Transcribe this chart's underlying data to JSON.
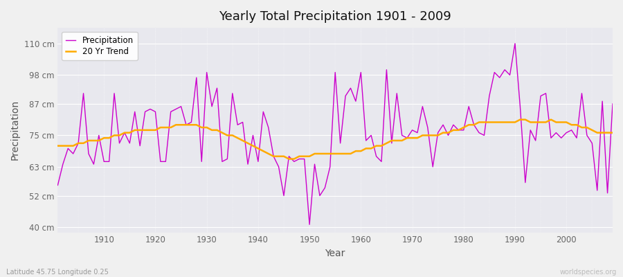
{
  "title": "Yearly Total Precipitation 1901 - 2009",
  "xlabel": "Year",
  "ylabel": "Precipitation",
  "subtitle": "Latitude 45.75 Longitude 0.25",
  "watermark": "worldspecies.org",
  "bg_color": "#f0f0f0",
  "plot_bg_color": "#e8e8ee",
  "precip_color": "#cc00cc",
  "trend_color": "#ffaa00",
  "precip_label": "Precipitation",
  "trend_label": "20 Yr Trend",
  "ylim": [
    38,
    116
  ],
  "yticks": [
    40,
    52,
    63,
    75,
    87,
    98,
    110
  ],
  "ytick_labels": [
    "40 cm",
    "52 cm",
    "63 cm",
    "75 cm",
    "87 cm",
    "98 cm",
    "110 cm"
  ],
  "years": [
    1901,
    1902,
    1903,
    1904,
    1905,
    1906,
    1907,
    1908,
    1909,
    1910,
    1911,
    1912,
    1913,
    1914,
    1915,
    1916,
    1917,
    1918,
    1919,
    1920,
    1921,
    1922,
    1923,
    1924,
    1925,
    1926,
    1927,
    1928,
    1929,
    1930,
    1931,
    1932,
    1933,
    1934,
    1935,
    1936,
    1937,
    1938,
    1939,
    1940,
    1941,
    1942,
    1943,
    1944,
    1945,
    1946,
    1947,
    1948,
    1949,
    1950,
    1951,
    1952,
    1953,
    1954,
    1955,
    1956,
    1957,
    1958,
    1959,
    1960,
    1961,
    1962,
    1963,
    1964,
    1965,
    1966,
    1967,
    1968,
    1969,
    1970,
    1971,
    1972,
    1973,
    1974,
    1975,
    1976,
    1977,
    1978,
    1979,
    1980,
    1981,
    1982,
    1983,
    1984,
    1985,
    1986,
    1987,
    1988,
    1989,
    1990,
    1991,
    1992,
    1993,
    1994,
    1995,
    1996,
    1997,
    1998,
    1999,
    2000,
    2001,
    2002,
    2003,
    2004,
    2005,
    2006,
    2007,
    2008,
    2009
  ],
  "precip": [
    56,
    64,
    70,
    68,
    72,
    91,
    68,
    64,
    75,
    65,
    65,
    91,
    72,
    76,
    72,
    84,
    71,
    84,
    85,
    84,
    65,
    65,
    84,
    85,
    86,
    79,
    80,
    97,
    65,
    99,
    86,
    93,
    65,
    66,
    91,
    79,
    80,
    64,
    75,
    65,
    84,
    78,
    67,
    63,
    52,
    67,
    65,
    66,
    66,
    41,
    64,
    52,
    55,
    63,
    99,
    72,
    90,
    93,
    88,
    99,
    73,
    75,
    67,
    65,
    100,
    72,
    91,
    75,
    74,
    77,
    76,
    86,
    78,
    63,
    76,
    79,
    75,
    79,
    77,
    77,
    86,
    79,
    76,
    75,
    90,
    99,
    97,
    100,
    98,
    110,
    86,
    57,
    77,
    73,
    90,
    91,
    74,
    76,
    74,
    76,
    77,
    74,
    91,
    75,
    72,
    54,
    88,
    53,
    87
  ],
  "trend_years": [
    1901,
    1902,
    1903,
    1904,
    1905,
    1906,
    1907,
    1908,
    1909,
    1910,
    1911,
    1912,
    1913,
    1914,
    1915,
    1916,
    1917,
    1918,
    1919,
    1920,
    1921,
    1922,
    1923,
    1924,
    1925,
    1926,
    1927,
    1928,
    1929,
    1930,
    1931,
    1932,
    1933,
    1934,
    1935,
    1936,
    1937,
    1938,
    1939,
    1940,
    1941,
    1942,
    1943,
    1944,
    1945,
    1946,
    1947,
    1948,
    1949,
    1950,
    1951,
    1952,
    1953,
    1954,
    1955,
    1956,
    1957,
    1958,
    1959,
    1960,
    1961,
    1962,
    1963,
    1964,
    1965,
    1966,
    1967,
    1968,
    1969,
    1970,
    1971,
    1972,
    1973,
    1974,
    1975,
    1976,
    1977,
    1978,
    1979,
    1980,
    1981,
    1982,
    1983,
    1984,
    1985,
    1986,
    1987,
    1988,
    1989,
    1990,
    1991,
    1992,
    1993,
    1994,
    1995,
    1996,
    1997,
    1998,
    1999,
    2000,
    2001,
    2002,
    2003,
    2004,
    2005,
    2006,
    2007,
    2008,
    2009
  ],
  "trend": [
    71,
    71,
    71,
    71,
    72,
    72,
    73,
    73,
    73,
    74,
    74,
    75,
    75,
    76,
    76,
    77,
    77,
    77,
    77,
    77,
    78,
    78,
    78,
    79,
    79,
    79,
    79,
    79,
    78,
    78,
    77,
    77,
    76,
    75,
    75,
    74,
    73,
    72,
    71,
    70,
    69,
    68,
    67,
    67,
    67,
    66,
    66,
    67,
    67,
    67,
    68,
    68,
    68,
    68,
    68,
    68,
    68,
    68,
    69,
    69,
    70,
    70,
    71,
    71,
    72,
    73,
    73,
    73,
    74,
    74,
    74,
    75,
    75,
    75,
    75,
    76,
    76,
    77,
    77,
    78,
    79,
    79,
    80,
    80,
    80,
    80,
    80,
    80,
    80,
    80,
    81,
    81,
    80,
    80,
    80,
    80,
    81,
    80,
    80,
    80,
    79,
    79,
    78,
    78,
    77,
    76,
    76,
    76,
    76
  ]
}
